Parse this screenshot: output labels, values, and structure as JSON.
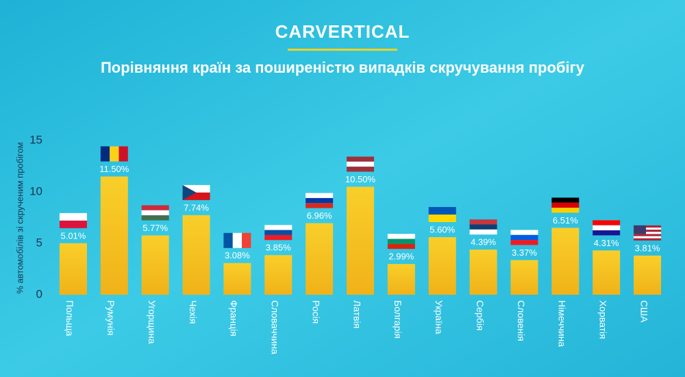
{
  "brand": "CARVERTICAL",
  "chart_data": {
    "type": "bar",
    "title": "Порівняння країн за поширеністю випадків скручування пробігу",
    "y_label": "% автомобілів зі скрученим пробігом",
    "categories": [
      "Польща",
      "Румунія",
      "Угорщина",
      "Чехія",
      "Франція",
      "Словаччина",
      "Росія",
      "Латвія",
      "Болгарія",
      "Україна",
      "Сербія",
      "Словенія",
      "Німеччина",
      "Хорватія",
      "США"
    ],
    "values": [
      5.01,
      11.5,
      5.77,
      7.74,
      3.08,
      3.85,
      6.96,
      10.5,
      2.99,
      5.6,
      4.39,
      3.37,
      6.51,
      4.31,
      3.81
    ],
    "value_labels": [
      "5.01%",
      "11.50%",
      "5.77%",
      "7.74%",
      "3.08%",
      "3.85%",
      "6.96%",
      "10.50%",
      "2.99%",
      "5.60%",
      "4.39%",
      "3.37%",
      "6.51%",
      "4.31%",
      "3.81%"
    ],
    "color": "#f6c21f",
    "ylim": [
      0,
      15
    ],
    "yticks": [
      0,
      5,
      10,
      15
    ]
  }
}
